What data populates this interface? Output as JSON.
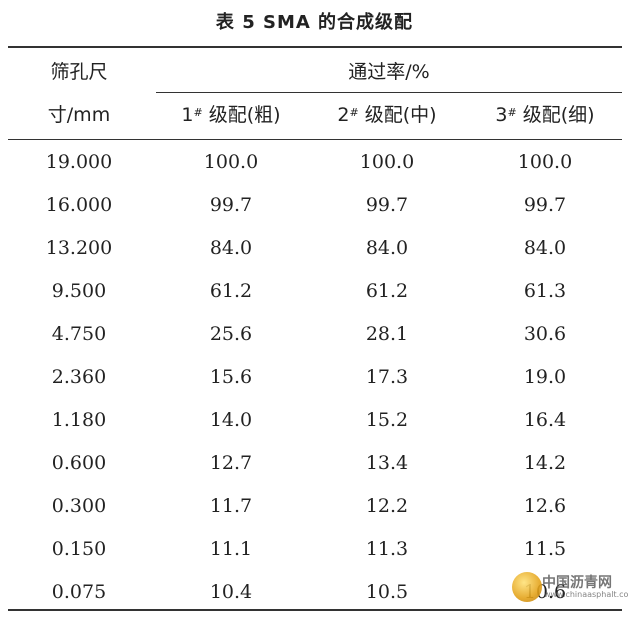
{
  "title": "表 5   SMA 的合成级配",
  "header": {
    "col0_line1": "筛孔尺",
    "col0_line2": "寸/mm",
    "group": "通过率/%",
    "col1": {
      "num": "1",
      "mark": "#",
      "label": " 级配(粗)"
    },
    "col2": {
      "num": "2",
      "mark": "#",
      "label": " 级配(中)"
    },
    "col3": {
      "num": "3",
      "mark": "#",
      "label": " 级配(细)"
    }
  },
  "rows": [
    {
      "size": "19.000",
      "c1": "100.0",
      "c2": "100.0",
      "c3": "100.0"
    },
    {
      "size": "16.000",
      "c1": "99.7",
      "c2": "99.7",
      "c3": "99.7"
    },
    {
      "size": "13.200",
      "c1": "84.0",
      "c2": "84.0",
      "c3": "84.0"
    },
    {
      "size": "9.500",
      "c1": "61.2",
      "c2": "61.2",
      "c3": "61.3"
    },
    {
      "size": "4.750",
      "c1": "25.6",
      "c2": "28.1",
      "c3": "30.6"
    },
    {
      "size": "2.360",
      "c1": "15.6",
      "c2": "17.3",
      "c3": "19.0"
    },
    {
      "size": "1.180",
      "c1": "14.0",
      "c2": "15.2",
      "c3": "16.4"
    },
    {
      "size": "0.600",
      "c1": "12.7",
      "c2": "13.4",
      "c3": "14.2"
    },
    {
      "size": "0.300",
      "c1": "11.7",
      "c2": "12.2",
      "c3": "12.6"
    },
    {
      "size": "0.150",
      "c1": "11.1",
      "c2": "11.3",
      "c3": "11.5"
    },
    {
      "size": "0.075",
      "c1": "10.4",
      "c2": "10.5",
      "c3": "10.6"
    }
  ],
  "watermark": {
    "name": "中国沥青网",
    "url": "www.chinaasphalt.com",
    "icon": "globe-logo-icon"
  }
}
